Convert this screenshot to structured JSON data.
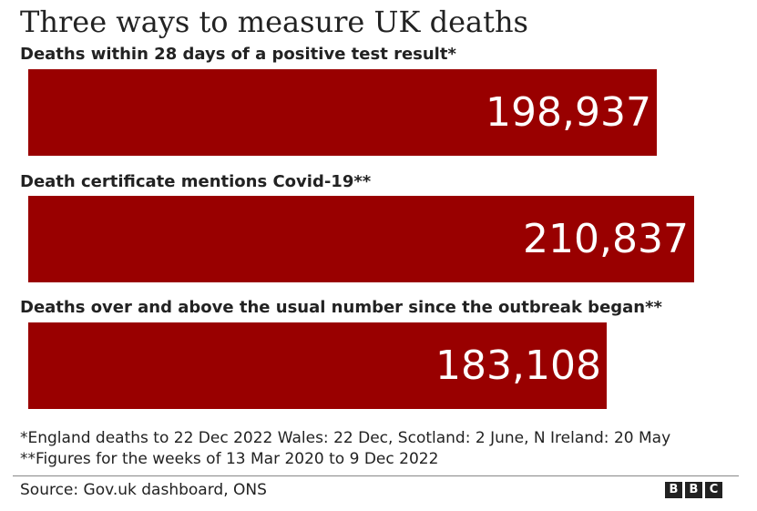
{
  "title": "Three ways to measure UK deaths",
  "chart_data": {
    "type": "bar",
    "orientation": "horizontal",
    "title": "Three ways to measure UK deaths",
    "categories": [
      "Deaths within 28 days of a positive test result*",
      "Death certificate mentions Covid-19**",
      "Deaths over and above the usual number since the outbreak began**"
    ],
    "values": [
      198937,
      210837,
      183108
    ],
    "value_labels": [
      "198,937",
      "210,837",
      "183,108"
    ],
    "bar_color": "#990000",
    "xlim": [
      0,
      210837
    ],
    "grid": false,
    "legend": "none"
  },
  "notes": [
    "*England deaths to 22 Dec 2022 Wales: 22 Dec, Scotland: 2 June, N Ireland: 20 May",
    "**Figures for the weeks of 13 Mar 2020 to 9 Dec 2022"
  ],
  "source": "Source: Gov.uk dashboard, ONS",
  "logo": [
    "B",
    "B",
    "C"
  ]
}
